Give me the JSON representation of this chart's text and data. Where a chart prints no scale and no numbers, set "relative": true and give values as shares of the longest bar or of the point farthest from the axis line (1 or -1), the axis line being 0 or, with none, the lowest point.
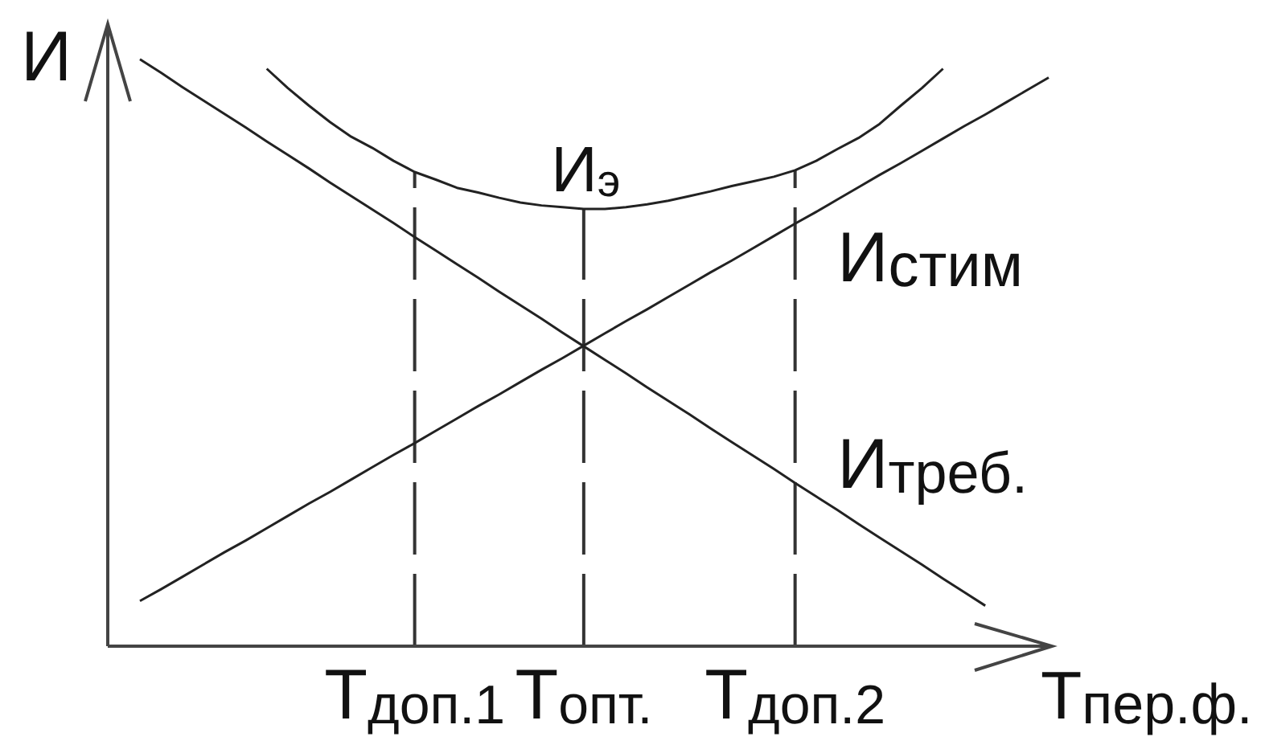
{
  "chart_data": {
    "type": "line",
    "relative": true,
    "xlabel": "Т$_{пер.ф.}$",
    "ylabel": "И",
    "categories": [
      null,
      null,
      null,
      null,
      null,
      null,
      null,
      null,
      null,
      null,
      null,
      null,
      null,
      "Т$_{доп.1}$",
      null,
      null,
      null,
      null,
      null,
      null,
      null,
      "Т$_{опт.}$",
      null,
      null,
      null,
      null,
      null,
      null,
      null,
      null,
      null,
      "Т$_{доп.2}$",
      null,
      null,
      null,
      null,
      null,
      null,
      null,
      null,
      null,
      null,
      null,
      null
    ],
    "series": [
      {
        "name": "И$_{э}$",
        "color": "#222222",
        "values": [
          null,
          null,
          null,
          null,
          null,
          null,
          0.984,
          0.951,
          0.921,
          0.893,
          0.868,
          0.849,
          0.827,
          0.808,
          0.795,
          0.781,
          0.773,
          0.764,
          0.756,
          0.751,
          0.748,
          0.745,
          0.745,
          0.748,
          0.753,
          0.759,
          0.767,
          0.775,
          0.784,
          0.792,
          0.8,
          0.811,
          0.827,
          0.847,
          0.866,
          0.89,
          0.921,
          0.951,
          0.984,
          null,
          null,
          null,
          null,
          null
        ]
      },
      {
        "name": "И$_{стим}$",
        "color": "#222222",
        "values": [
          0.077,
          0.097,
          0.118,
          0.139,
          0.16,
          0.18,
          0.201,
          0.222,
          0.243,
          0.263,
          0.284,
          0.305,
          0.326,
          0.346,
          0.367,
          0.388,
          0.409,
          0.429,
          0.45,
          0.471,
          0.491,
          0.512,
          0.533,
          0.554,
          0.574,
          0.595,
          0.616,
          0.637,
          0.657,
          0.678,
          0.699,
          0.72,
          0.74,
          0.761,
          0.782,
          0.803,
          0.823,
          0.844,
          0.865,
          0.886,
          0.906,
          0.927,
          0.948,
          0.969
        ]
      },
      {
        "name": "И$_{треб.}$",
        "color": "#222222",
        "values": [
          1,
          0.977,
          0.953,
          0.93,
          0.907,
          0.884,
          0.86,
          0.837,
          0.814,
          0.79,
          0.767,
          0.744,
          0.721,
          0.697,
          0.674,
          0.651,
          0.628,
          0.604,
          0.581,
          0.558,
          0.534,
          0.511,
          0.488,
          0.465,
          0.441,
          0.418,
          0.395,
          0.371,
          0.348,
          0.325,
          0.302,
          0.278,
          0.255,
          0.232,
          0.208,
          0.185,
          0.162,
          0.139,
          0.115,
          0.092,
          0.069,
          null,
          null,
          null
        ]
      }
    ],
    "ref_lines": [
      {
        "axis": "x",
        "value": "Т$_{доп.1}$",
        "color": "#333333",
        "line_style": "dashed"
      },
      {
        "axis": "x",
        "value": "Т$_{опт.}$",
        "color": "#333333",
        "line_style": "dashed"
      },
      {
        "axis": "x",
        "value": "Т$_{доп.2}$",
        "color": "#333333",
        "line_style": "dashed"
      }
    ]
  }
}
